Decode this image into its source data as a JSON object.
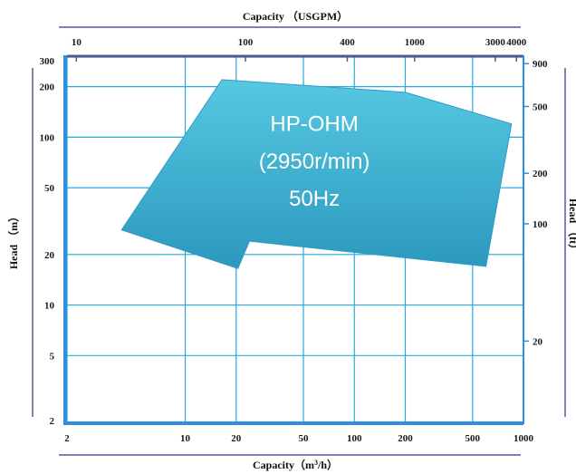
{
  "chart_data": {
    "type": "area",
    "title": "",
    "x_axis_bottom": {
      "label": "Capacity (m³/h)",
      "label_prefix": "Capacity（m",
      "label_sup": "3",
      "label_suffix": "/h）",
      "scale": "log",
      "range": [
        2,
        1000
      ],
      "ticks": [
        2,
        10,
        20,
        50,
        100,
        200,
        500,
        1000
      ],
      "tick_labels": [
        "2",
        "10",
        "20",
        "50",
        "100",
        "200",
        "500",
        "1000"
      ]
    },
    "x_axis_top": {
      "label": "Capacity （USGPM）",
      "scale": "log",
      "ticks": [
        10,
        100,
        400,
        1000,
        3000,
        4000
      ],
      "tick_labels": [
        "10",
        "100",
        "400",
        "1000",
        "3000",
        "4000"
      ]
    },
    "y_axis_left": {
      "label": "Head （m）",
      "scale": "log",
      "range": [
        2,
        300
      ],
      "ticks": [
        2,
        5,
        10,
        20,
        50,
        100,
        200,
        300
      ],
      "tick_labels": [
        "2",
        "5",
        "10",
        "20",
        "50",
        "100",
        "200",
        "300"
      ]
    },
    "y_axis_right": {
      "label": "Head （ft）",
      "scale": "log",
      "ticks": [
        20,
        100,
        200,
        500,
        900
      ],
      "tick_labels": [
        "20",
        "100",
        "200",
        "500",
        "900"
      ]
    },
    "grid": true,
    "region": {
      "name_lines": [
        "HP-OHM",
        "(2950r/min)",
        "50Hz"
      ],
      "color": "#35B3D3",
      "points": [
        {
          "x": 16.5,
          "y": 220
        },
        {
          "x": 200,
          "y": 185
        },
        {
          "x": 850,
          "y": 120
        },
        {
          "x": 600,
          "y": 17
        },
        {
          "x": 24,
          "y": 24
        },
        {
          "x": 20.5,
          "y": 16.5
        },
        {
          "x": 4.2,
          "y": 28
        }
      ]
    },
    "colors": {
      "grid": "#29A9E0",
      "frame_left": "#2E8FE0",
      "frame_bottom": "#2E8FE0",
      "frame_top": "#4E5D8E",
      "axis_bar": "#8C7BB5"
    }
  }
}
